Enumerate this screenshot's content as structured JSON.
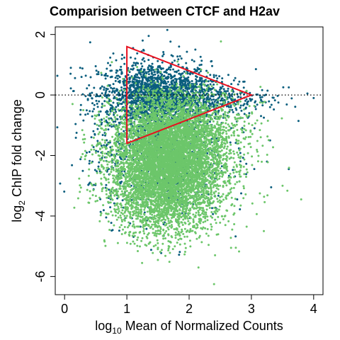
{
  "chart_data": {
    "type": "scatter",
    "title": "Comparision between CTCF and H2av",
    "xlabel": {
      "prefix": "log",
      "subscript": "10",
      "text": " Mean of Normalized Counts"
    },
    "ylabel": {
      "prefix": "log",
      "subscript": "2",
      "text": " ChIP fold change"
    },
    "xlim": [
      -0.15,
      4.15
    ],
    "ylim": [
      -6.6,
      2.25
    ],
    "x_ticks": [
      0,
      1,
      2,
      3,
      4
    ],
    "x_tick_labels": [
      "0",
      "1",
      "2",
      "3",
      "4"
    ],
    "y_ticks": [
      -6,
      -4,
      -2,
      0,
      2
    ],
    "y_tick_labels": [
      "-6",
      "-4",
      "-2",
      "0",
      "2"
    ],
    "grid": false,
    "legend": "none",
    "reference_line": {
      "y": 0,
      "style": "dotted",
      "color": "#000000"
    },
    "annotation_triangle": {
      "color": "#e8101e",
      "vertices": [
        [
          1.0,
          1.6
        ],
        [
          3.0,
          0.0
        ],
        [
          1.0,
          -1.6
        ]
      ]
    },
    "series": [
      {
        "color": "#0a5e7e",
        "clusters": [
          {
            "cx": 1.45,
            "cy": 0.0,
            "sx": 0.45,
            "sy": 0.55,
            "n": 1600
          },
          {
            "cx": 2.2,
            "cy": -0.1,
            "sx": 0.55,
            "sy": 0.35,
            "n": 500
          },
          {
            "cx": 1.5,
            "cy": -2.0,
            "sx": 0.55,
            "sy": 1.05,
            "n": 900
          }
        ],
        "highlights": [
          {
            "x": 1.65,
            "y": 2.15
          },
          {
            "x": 1.35,
            "y": 1.95
          },
          {
            "x": 2.1,
            "y": 1.5
          },
          {
            "x": 1.1,
            "y": 1.55
          },
          {
            "x": 0.1,
            "y": 0.9
          },
          {
            "x": 0.25,
            "y": 0.9
          },
          {
            "x": 0.5,
            "y": 0.95
          },
          {
            "x": 3.6,
            "y": 0.25
          },
          {
            "x": 3.9,
            "y": 0.05
          },
          {
            "x": 4.0,
            "y": -0.1
          },
          {
            "x": 3.3,
            "y": -0.4
          },
          {
            "x": 3.2,
            "y": -0.75
          },
          {
            "x": 3.05,
            "y": -1.1
          },
          {
            "x": 3.3,
            "y": -1.5
          },
          {
            "x": 3.25,
            "y": -2.2
          },
          {
            "x": 3.6,
            "y": -2.45
          }
        ]
      },
      {
        "color": "#6cc66a",
        "clusters": [
          {
            "cx": 1.65,
            "cy": -2.3,
            "sx": 0.45,
            "sy": 0.95,
            "n": 5200
          },
          {
            "cx": 1.85,
            "cy": -1.2,
            "sx": 0.55,
            "sy": 0.7,
            "n": 1500
          },
          {
            "cx": 1.6,
            "cy": -3.6,
            "sx": 0.45,
            "sy": 0.7,
            "n": 700
          }
        ],
        "highlights": [
          {
            "x": 2.4,
            "y": -6.25
          },
          {
            "x": 2.15,
            "y": -5.7
          },
          {
            "x": 1.5,
            "y": -5.05
          },
          {
            "x": 0.9,
            "y": -3.1
          },
          {
            "x": 0.65,
            "y": -1.5
          },
          {
            "x": 0.3,
            "y": -0.5
          },
          {
            "x": 3.8,
            "y": -3.45
          },
          {
            "x": 3.5,
            "y": -3.0
          },
          {
            "x": 3.2,
            "y": -4.5
          },
          {
            "x": 2.75,
            "y": -5.05
          }
        ]
      }
    ]
  }
}
